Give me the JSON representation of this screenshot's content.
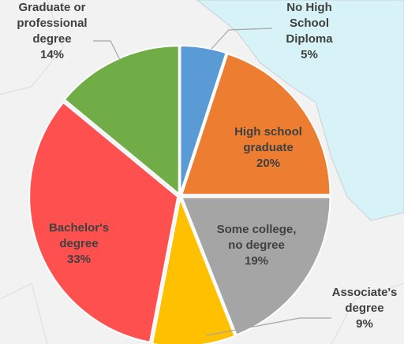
{
  "chart_data": {
    "type": "pie",
    "categories": [
      "No High School Diploma",
      "High school graduate",
      "Some college, no degree",
      "Associate's degree",
      "Bachelor's degree",
      "Graduate or professional degree"
    ],
    "values": [
      5,
      20,
      19,
      9,
      33,
      14
    ],
    "value_labels": [
      "5%",
      "20%",
      "19%",
      "9%",
      "33%",
      "14%"
    ],
    "colors": [
      "#5b9bd5",
      "#ed7d31",
      "#a5a5a5",
      "#ffc000",
      "#ff5050",
      "#70ad47"
    ]
  }
}
